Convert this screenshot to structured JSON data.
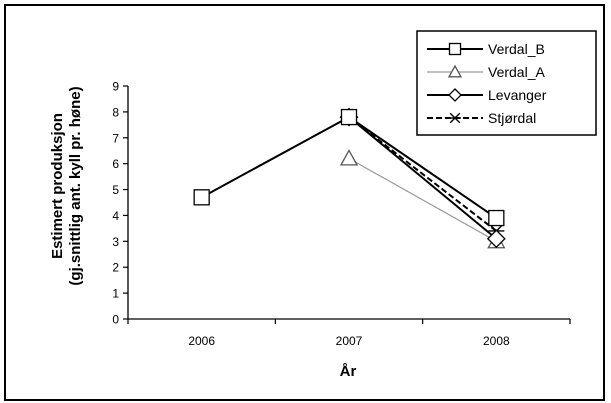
{
  "chart_data": {
    "type": "line",
    "categories": [
      "2006",
      "2007",
      "2008"
    ],
    "xlabel": "År",
    "ylabel": [
      "Estimert produksjon",
      "(gj.snittlig ant. kyll pr. høne)"
    ],
    "ylim": [
      0,
      9
    ],
    "yticks": [
      "0",
      "1",
      "2",
      "3",
      "4",
      "5",
      "6",
      "7",
      "8",
      "9"
    ],
    "grid": false,
    "legend_position": "top-right",
    "series": [
      {
        "name": "Verdal_B",
        "values": [
          4.7,
          7.8,
          3.9
        ],
        "marker": "square",
        "color": "#000000",
        "style": "solid"
      },
      {
        "name": "Verdal_A",
        "values": [
          null,
          6.2,
          3.0
        ],
        "marker": "triangle",
        "color": "#9a9a9a",
        "style": "solid"
      },
      {
        "name": "Levanger",
        "values": [
          null,
          7.8,
          3.1
        ],
        "marker": "diamond",
        "color": "#000000",
        "style": "solid"
      },
      {
        "name": "Stjørdal",
        "values": [
          null,
          7.8,
          3.4
        ],
        "marker": "star",
        "color": "#000000",
        "style": "dashed"
      }
    ]
  }
}
